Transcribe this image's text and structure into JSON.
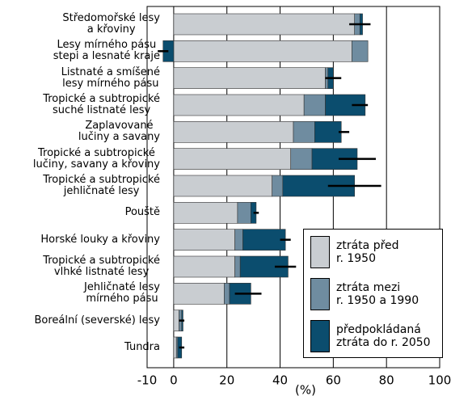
{
  "chart_data": {
    "type": "stacked-barh",
    "categories": [
      "Středomořské lesy\na křoviny",
      "Lesy mírného pásu\nstepi a lesnaté kraje",
      "Listnaté a smíšené\nlesy mírného pásu",
      "Tropické a subtropické\nsuché listnaté lesy",
      "Zaplavované\nlučiny a savany",
      "Tropické a subtropické\nlučiny, savany a křoviny",
      "Tropické a subtropické\njehličnaté lesy",
      "Pouště",
      "Horské louky a křoviny",
      "Tropické a subtropické\nvlhké listnaté lesy",
      "Jehličnaté lesy\nmírného pásu",
      "Boreální (severské) lesy",
      "Tundra"
    ],
    "series": [
      {
        "name": "ztráta před\nr. 1950",
        "color": "#c9cdd1",
        "values": [
          68,
          67,
          57,
          49,
          45,
          44,
          37,
          24,
          23,
          23,
          19,
          2,
          1
        ]
      },
      {
        "name": "ztráta mezi\nr. 1950 a 1990",
        "color": "#6f8ca0",
        "values": [
          2,
          6,
          1,
          8,
          8,
          8,
          4,
          5,
          3,
          2,
          2,
          1,
          0.5
        ]
      },
      {
        "name": "předpokládaná\nztráta do r. 2050",
        "color": "#0b4d6e",
        "values": [
          1,
          -4,
          2,
          15,
          10,
          17,
          27,
          2,
          16,
          18,
          8,
          0.5,
          1.5
        ]
      }
    ],
    "errors": {
      "center": [
        70,
        -4,
        60,
        70,
        64,
        69,
        68,
        31,
        42,
        42,
        28,
        3,
        3
      ],
      "err": [
        4,
        2,
        3,
        3,
        2,
        7,
        10,
        1,
        2,
        4,
        5,
        1,
        1
      ]
    },
    "xlabel": "(%)",
    "xlim": [
      -10,
      100
    ],
    "xticks": [
      -10,
      0,
      20,
      40,
      60,
      80,
      100
    ],
    "grid": true
  }
}
